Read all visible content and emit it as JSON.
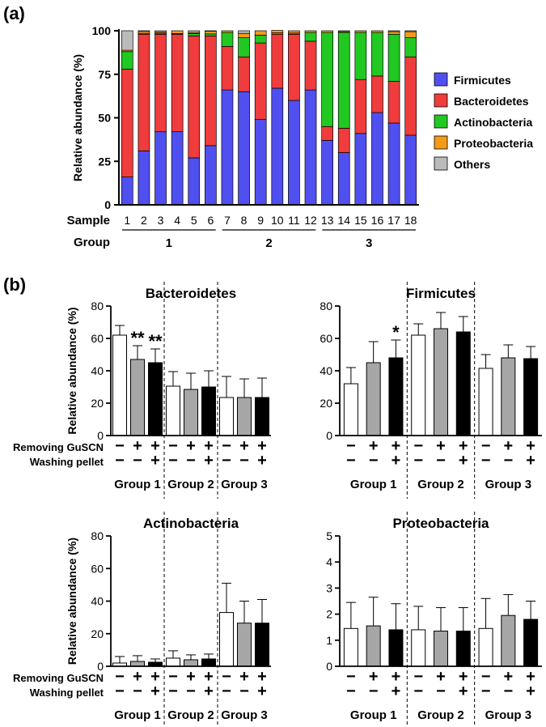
{
  "panel_labels": {
    "a": "(a)",
    "b": "(b)"
  },
  "chart_data": [
    {
      "type": "bar",
      "stacked": true,
      "id": "a",
      "title": "",
      "ylabel": "Relative abundance (%)",
      "ylim": [
        0,
        100
      ],
      "yticks": [
        0,
        25,
        50,
        75,
        100
      ],
      "row_labels": {
        "sample": "Sample",
        "group": "Group"
      },
      "categories": [
        "1",
        "2",
        "3",
        "4",
        "5",
        "6",
        "7",
        "8",
        "9",
        "10",
        "11",
        "12",
        "13",
        "14",
        "15",
        "16",
        "17",
        "18"
      ],
      "groups": [
        {
          "label": "1",
          "samples": [
            "1",
            "2",
            "3",
            "4",
            "5",
            "6"
          ]
        },
        {
          "label": "2",
          "samples": [
            "7",
            "8",
            "9",
            "10",
            "11",
            "12"
          ]
        },
        {
          "label": "3",
          "samples": [
            "13",
            "14",
            "15",
            "16",
            "17",
            "18"
          ]
        }
      ],
      "series": [
        {
          "name": "Firmicutes",
          "color": "#5050f0",
          "values": [
            16,
            31,
            42,
            42,
            27,
            34,
            66,
            65,
            49,
            67,
            60,
            66,
            37,
            30,
            41,
            53,
            47,
            40
          ]
        },
        {
          "name": "Bacteroidetes",
          "color": "#f03c3c",
          "values": [
            62,
            67,
            56,
            56,
            70,
            63,
            25,
            20,
            44,
            31,
            38,
            28,
            8,
            14,
            31,
            21,
            24,
            45
          ]
        },
        {
          "name": "Actinobacteria",
          "color": "#22c822",
          "values": [
            10,
            0.6,
            0.6,
            0.4,
            1.4,
            1.2,
            8,
            11,
            4.5,
            0.8,
            0.7,
            5,
            54,
            55,
            27,
            25,
            27,
            11
          ]
        },
        {
          "name": "Proteobacteria",
          "color": "#f59a17",
          "values": [
            0.8,
            1.2,
            0.6,
            1.6,
            0.6,
            1.6,
            1,
            2.5,
            2.5,
            1.4,
            1.3,
            1,
            1,
            0.5,
            1,
            1,
            1.5,
            3.5
          ]
        },
        {
          "name": "Others",
          "color": "#bbbbbb",
          "values": [
            11.2,
            0.2,
            0.8,
            0,
            1,
            0.2,
            0,
            1.5,
            0,
            0,
            0,
            0,
            0,
            0.5,
            0,
            0,
            0.5,
            0.5
          ]
        }
      ],
      "legend_position": "right"
    },
    {
      "type": "bar",
      "id": "b1",
      "title": "Bacteroidetes",
      "ylabel": "Relative abundance (%)",
      "ylim": [
        0,
        80
      ],
      "yticks": [
        0,
        20,
        40,
        60,
        80
      ],
      "values": [
        62,
        47,
        45,
        30.5,
        28.5,
        30,
        23.5,
        23.5,
        23.5
      ],
      "errors": [
        6,
        8.5,
        8.5,
        9,
        10,
        10,
        13,
        11.5,
        12
      ],
      "annotations": [
        "",
        "**",
        "**",
        "",
        "",
        "",
        "",
        "",
        ""
      ]
    },
    {
      "type": "bar",
      "id": "b2",
      "title": "Firmicutes",
      "ylabel": "",
      "ylim": [
        0,
        80
      ],
      "yticks": [
        0,
        20,
        40,
        60,
        80
      ],
      "values": [
        32,
        45,
        48,
        62,
        66,
        64,
        41.5,
        48,
        47.5
      ],
      "errors": [
        10,
        13,
        11,
        7,
        10,
        9.5,
        8.5,
        8,
        7.5
      ],
      "annotations": [
        "",
        "",
        "*",
        "",
        "",
        "",
        "",
        "",
        ""
      ]
    },
    {
      "type": "bar",
      "id": "b3",
      "title": "Actinobacteria",
      "ylabel": "Relative abundance (%)",
      "ylim": [
        0,
        80
      ],
      "yticks": [
        0,
        20,
        40,
        60,
        80
      ],
      "values": [
        2,
        3,
        2.5,
        5,
        4,
        4.5,
        33,
        26.5,
        26.5
      ],
      "errors": [
        4,
        3.5,
        2,
        4.5,
        3,
        3,
        18,
        13.5,
        14.5
      ],
      "annotations": [
        "",
        "",
        "",
        "",
        "",
        "",
        "",
        "",
        ""
      ]
    },
    {
      "type": "bar",
      "id": "b4",
      "title": "Proteobacteria",
      "ylabel": "",
      "ylim": [
        0,
        5
      ],
      "yticks": [
        0,
        1,
        2,
        3,
        4,
        5
      ],
      "values": [
        1.45,
        1.55,
        1.4,
        1.4,
        1.35,
        1.35,
        1.45,
        1.95,
        1.8
      ],
      "errors": [
        1,
        1.1,
        1,
        0.9,
        0.9,
        0.9,
        1.15,
        0.8,
        0.7
      ],
      "annotations": [
        "",
        "",
        "",
        "",
        "",
        "",
        "",
        "",
        ""
      ]
    }
  ],
  "treatments": {
    "row1_label": "Removing GuSCN",
    "row2_label": "Washing pellet",
    "row1": [
      "−",
      "+",
      "+",
      "−",
      "+",
      "+",
      "−",
      "+",
      "+"
    ],
    "row2": [
      "−",
      "−",
      "+",
      "−",
      "−",
      "+",
      "−",
      "−",
      "+"
    ],
    "bar_fills": [
      "#ffffff",
      "#a6a6a6",
      "#000000",
      "#ffffff",
      "#a6a6a6",
      "#000000",
      "#ffffff",
      "#a6a6a6",
      "#000000"
    ],
    "groups": [
      "Group 1",
      "Group 2",
      "Group 3"
    ]
  }
}
